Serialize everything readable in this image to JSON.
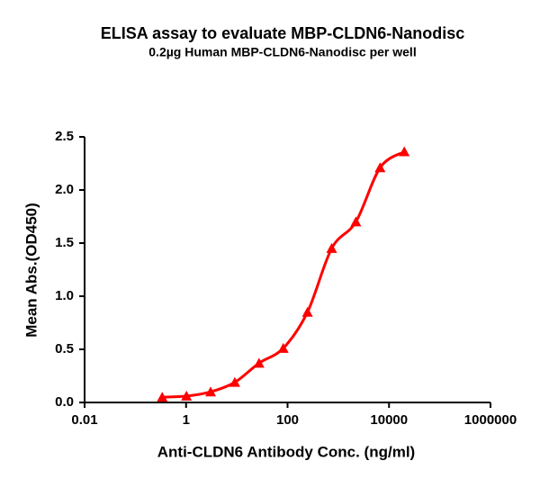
{
  "chart_data": {
    "type": "scatter",
    "title": "ELISA assay to evaluate MBP-CLDN6-Nanodisc",
    "subtitle": "0.2µg Human MBP-CLDN6-Nanodisc per well",
    "x_label": "Anti-CLDN6 Antibody Conc. (ng/ml)",
    "y_label": "Mean Abs.(OD450)",
    "x_scale": "log",
    "x": [
      0.339,
      1.02,
      3.05,
      9.14,
      27.4,
      82.3,
      247,
      741,
      2222,
      6667,
      20000
    ],
    "series": [
      {
        "color": "#ff0000",
        "values": [
          0.05,
          0.06,
          0.1,
          0.19,
          0.37,
          0.51,
          0.85,
          1.45,
          1.7,
          2.21,
          2.36
        ]
      }
    ],
    "xlim": [
      0.01,
      1000000
    ],
    "xticks": [
      0.01,
      1,
      100,
      10000,
      1000000
    ],
    "ylim": [
      0,
      2.5
    ],
    "yticks": [
      {
        "value": 0,
        "label": "0.0"
      },
      0.5,
      {
        "value": 1,
        "label": "1.0"
      },
      1.5,
      {
        "value": 2,
        "label": "2.0"
      },
      2.5
    ]
  }
}
